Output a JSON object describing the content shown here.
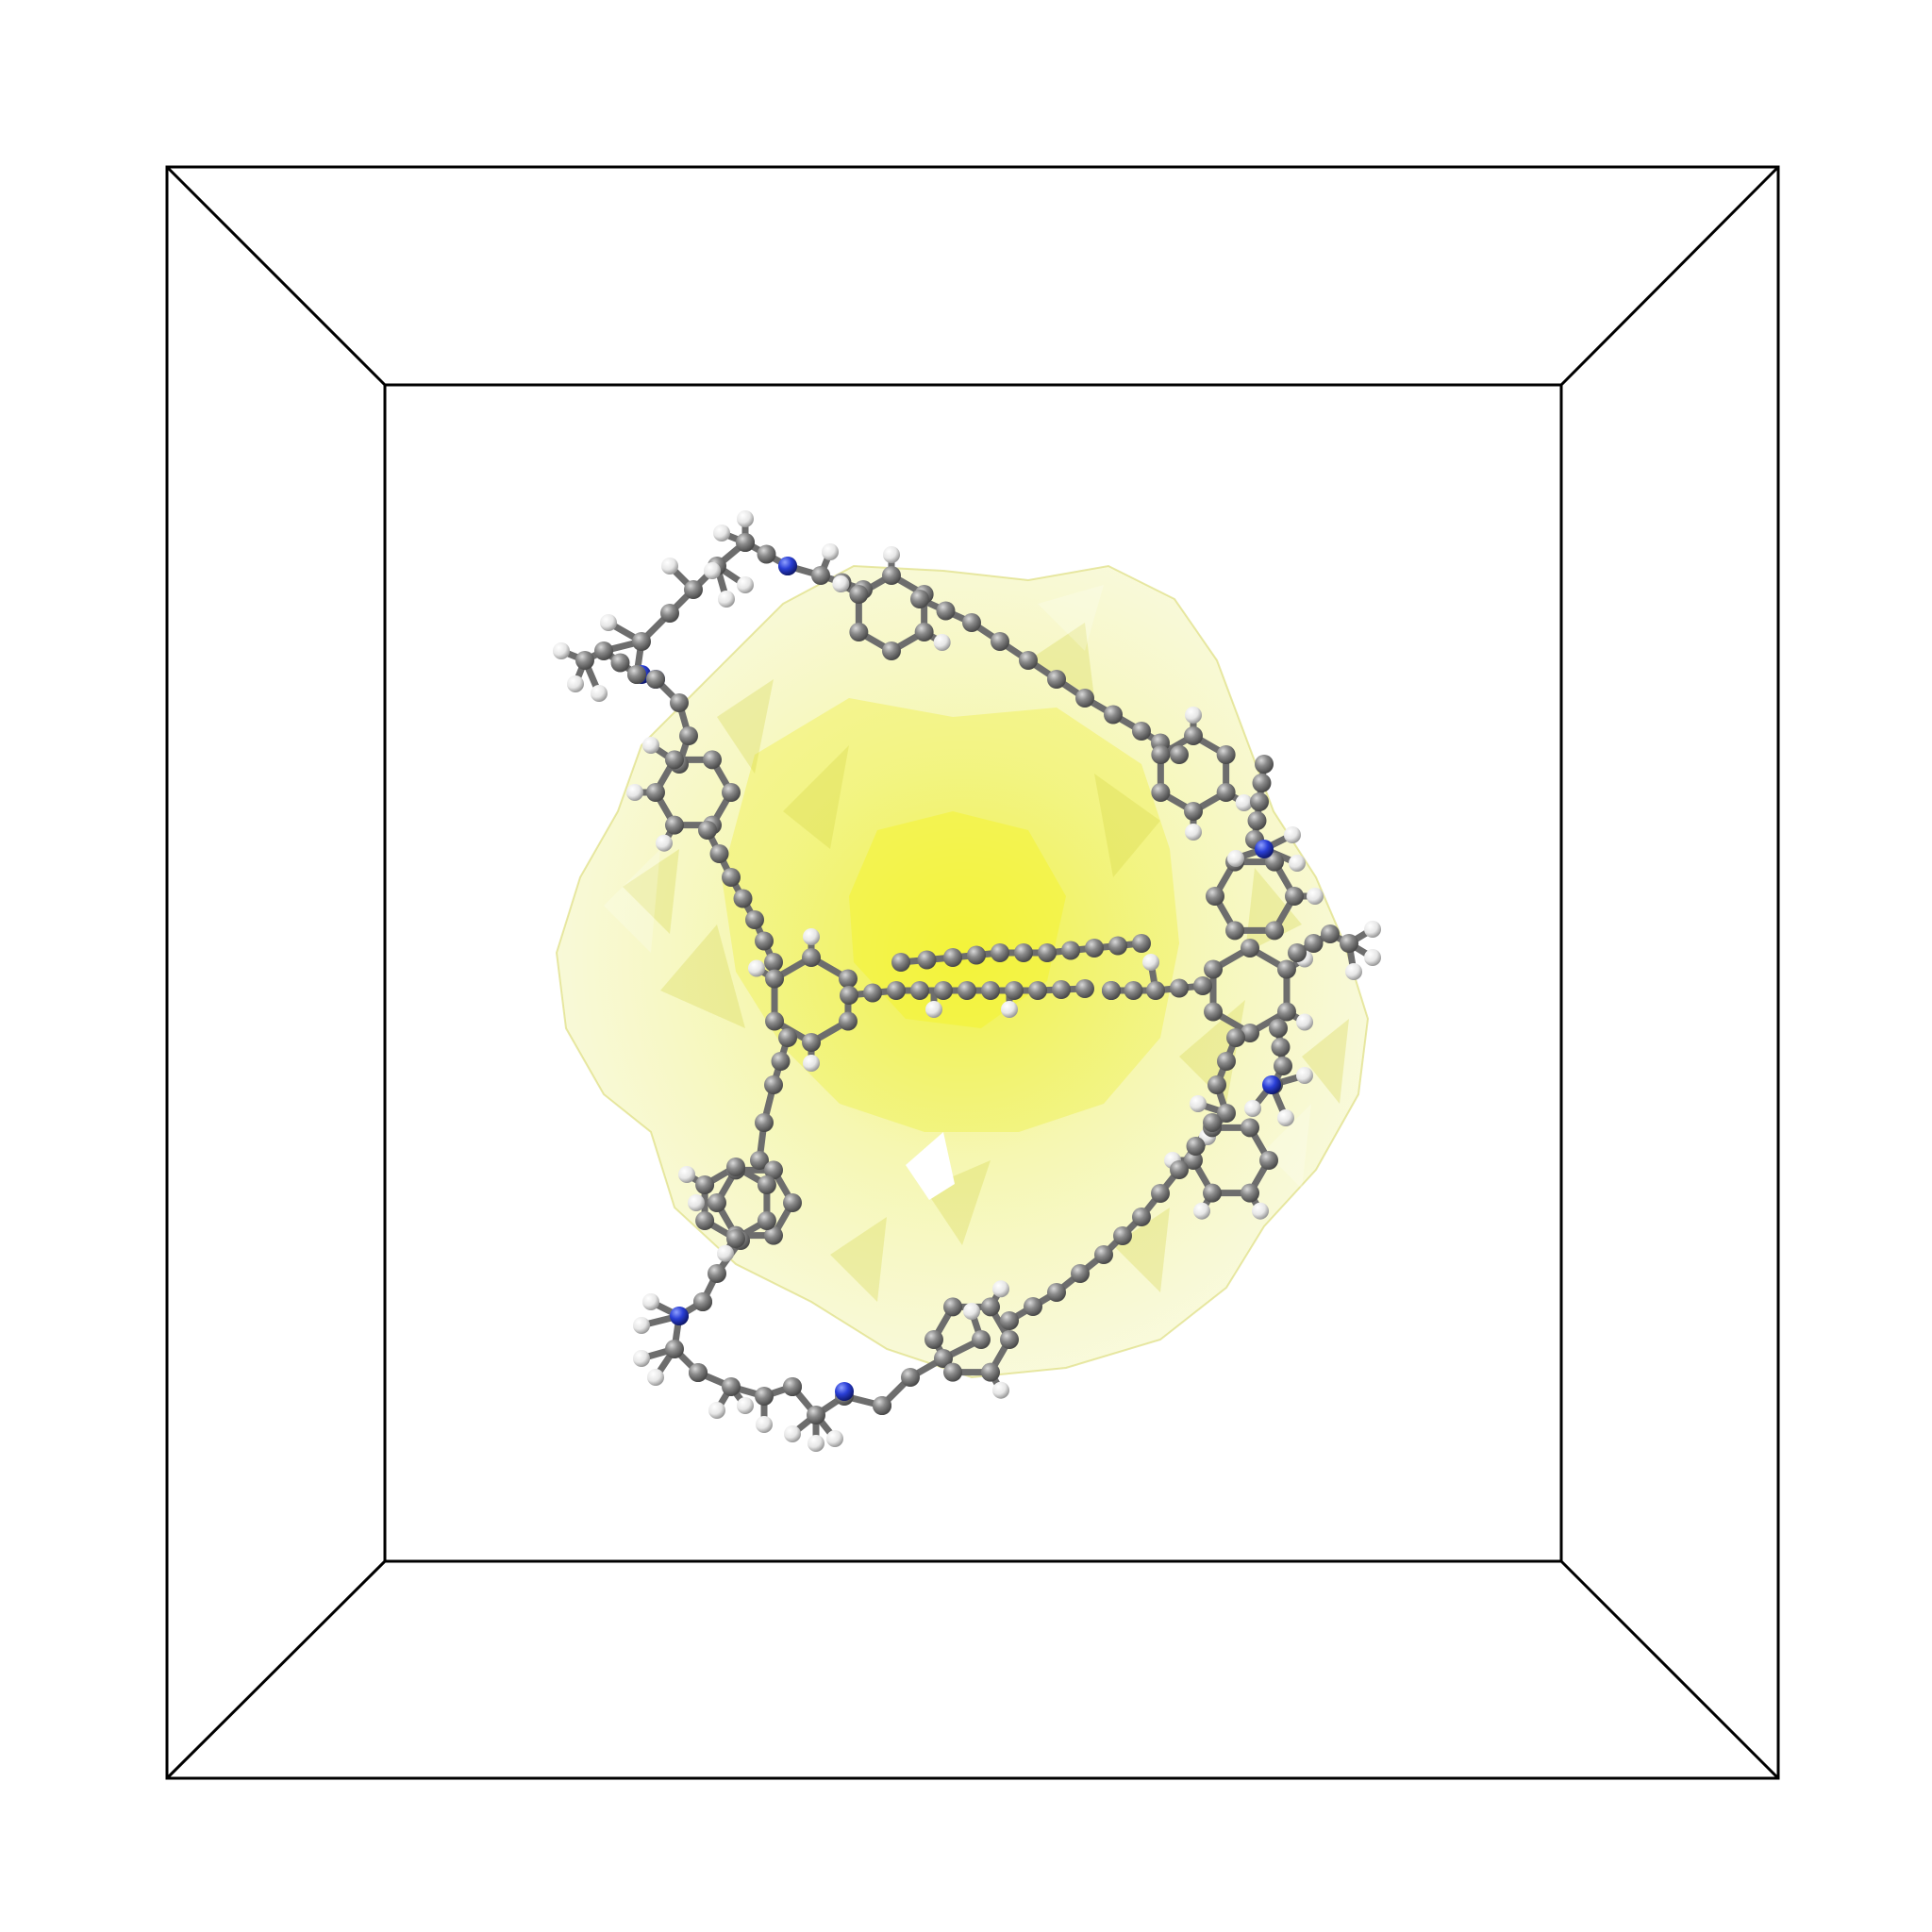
{
  "scene": {
    "background_color": "#ffffff",
    "box_line_color": "#000000",
    "isosurface_color": "#f2f25a",
    "atom_colors": {
      "carbon": "#7b7b7b",
      "hydrogen": "#eeeeee",
      "nitrogen": "#2a3fd6"
    },
    "bond_color": "#6d6d6d"
  }
}
